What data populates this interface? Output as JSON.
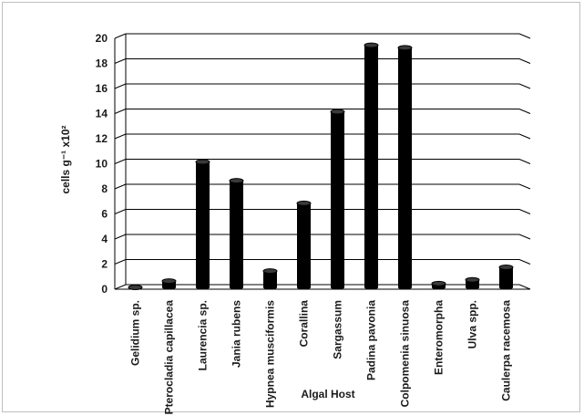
{
  "chart_data": {
    "type": "bar",
    "title": "",
    "xlabel": "Algal Host",
    "ylabel": "cells g⁻¹ x10²",
    "ylim": [
      0,
      20
    ],
    "yticks": [
      "0",
      "2",
      "4",
      "6",
      "8",
      "10",
      "12",
      "14",
      "16",
      "18",
      "20"
    ],
    "grid": true,
    "legend": "none",
    "categories": [
      "Gelidium sp.",
      "Pterocladia capillacea",
      "Laurencia sp.",
      "Jania rubens",
      "Hypnea musciformis",
      "Corallina",
      "Sargassum",
      "Padina pavonia",
      "Colpomenia sinuosa",
      "Enteromorpha",
      "Ulva spp.",
      "Caulerpa racemosa"
    ],
    "values": [
      0,
      0.5,
      10,
      8.5,
      1.3,
      6.7,
      14,
      19.3,
      19.1,
      0.3,
      0.6,
      1.6
    ],
    "bar_color": "#000000",
    "grid_color": "#000000"
  }
}
